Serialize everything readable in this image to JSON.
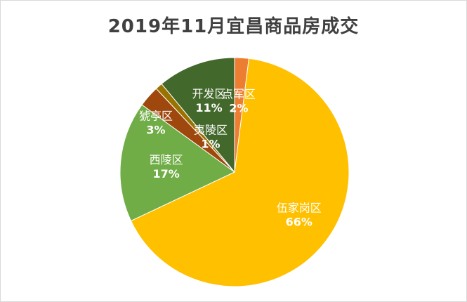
{
  "chart_data": {
    "type": "pie",
    "title": "2019年11月宜昌商品房成交",
    "start_angle_deg": 0,
    "direction": "clockwise",
    "slices": [
      {
        "name": "点军区",
        "value": 2,
        "label": "2%",
        "color": "#ed7d31"
      },
      {
        "name": "伍家岗区",
        "value": 66,
        "label": "66%",
        "color": "#ffc000"
      },
      {
        "name": "西陵区",
        "value": 17,
        "label": "17%",
        "color": "#70ad47"
      },
      {
        "name": "猇亭区",
        "value": 3,
        "label": "3%",
        "color": "#9e480e"
      },
      {
        "name": "夷陵区",
        "value": 1,
        "label": "1%",
        "color": "#997300"
      },
      {
        "name": "开发区",
        "value": 11,
        "label": "11%",
        "color": "#43682b"
      }
    ]
  }
}
